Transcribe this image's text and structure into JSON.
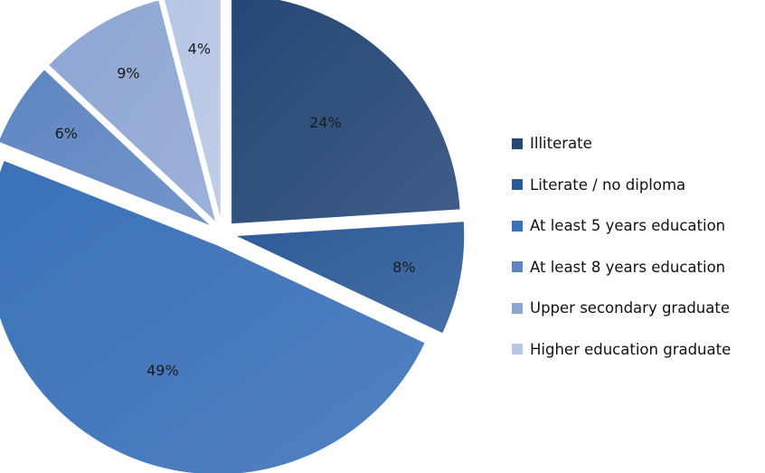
{
  "chart_data": {
    "type": "pie",
    "exploded": true,
    "legend_position": "right",
    "categories": [
      "Illiterate",
      "Literate / no diploma",
      "At least  5 years education",
      "At least  8 years education",
      "Upper secondary graduate",
      "Higher education graduate"
    ],
    "values": [
      24,
      8,
      49,
      6,
      9,
      4
    ],
    "value_labels": [
      "24%",
      "8%",
      "49%",
      "6%",
      "9%",
      "4%"
    ],
    "colors": [
      "#254776",
      "#2d5b99",
      "#3a71b8",
      "#5f86c2",
      "#8ea6d3",
      "#b6c6e4"
    ]
  }
}
